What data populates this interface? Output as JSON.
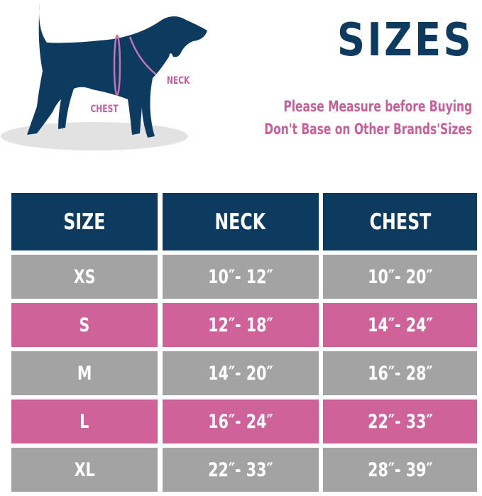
{
  "title": "SIZES",
  "notes": [
    "Please Measure before Buying",
    "Don't Base on Other Brands'Sizes"
  ],
  "illustration": {
    "neck_label": "NECK",
    "chest_label": "CHEST"
  },
  "colors": {
    "navy": "#0d3a5f",
    "gray": "#a3a3a3",
    "pink": "#d0629a",
    "text_pink": "#c85f9a"
  },
  "table": {
    "headers": [
      "SIZE",
      "NECK",
      "CHEST"
    ],
    "rows": [
      {
        "size": "XS",
        "neck": "10″- 12″",
        "chest": "10″- 20″"
      },
      {
        "size": "S",
        "neck": "12″- 18″",
        "chest": "14″- 24″"
      },
      {
        "size": "M",
        "neck": "14″- 20″",
        "chest": "16″- 28″"
      },
      {
        "size": "L",
        "neck": "16″- 24″",
        "chest": "22″- 33″"
      },
      {
        "size": "XL",
        "neck": "22″- 33″",
        "chest": "28″- 39″"
      }
    ]
  }
}
